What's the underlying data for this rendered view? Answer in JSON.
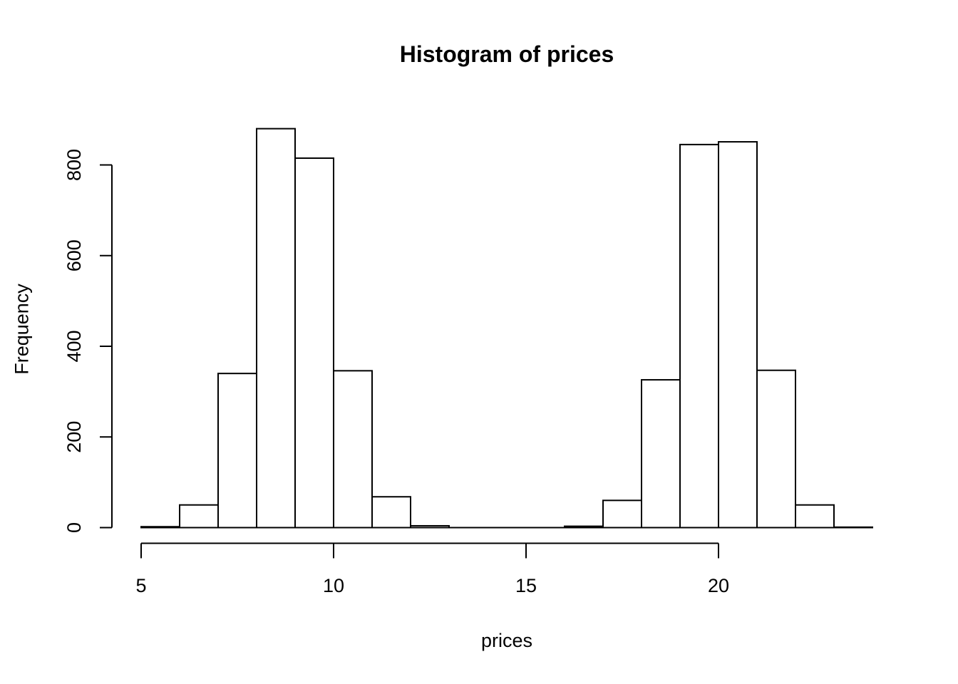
{
  "chart_data": {
    "type": "bar",
    "subtype": "histogram",
    "title": "Histogram of prices",
    "xlabel": "prices",
    "ylabel": "Frequency",
    "bin_edges": [
      5,
      6,
      7,
      8,
      9,
      10,
      11,
      12,
      13,
      14,
      15,
      16,
      17,
      18,
      19,
      20,
      21,
      22,
      23,
      24
    ],
    "counts": [
      2,
      50,
      340,
      880,
      815,
      346,
      68,
      4,
      0,
      0,
      0,
      3,
      60,
      326,
      845,
      851,
      347,
      50,
      1
    ],
    "x_ticks": [
      5,
      10,
      15,
      20
    ],
    "y_ticks": [
      0,
      200,
      400,
      600,
      800
    ],
    "xlim": [
      5,
      24
    ],
    "ylim": [
      0,
      880
    ],
    "grid": false,
    "legend": null,
    "bar_fill": "#ffffff",
    "bar_stroke": "#000000",
    "axis_color": "#000000",
    "background": "#ffffff",
    "text_color": "#000000"
  }
}
